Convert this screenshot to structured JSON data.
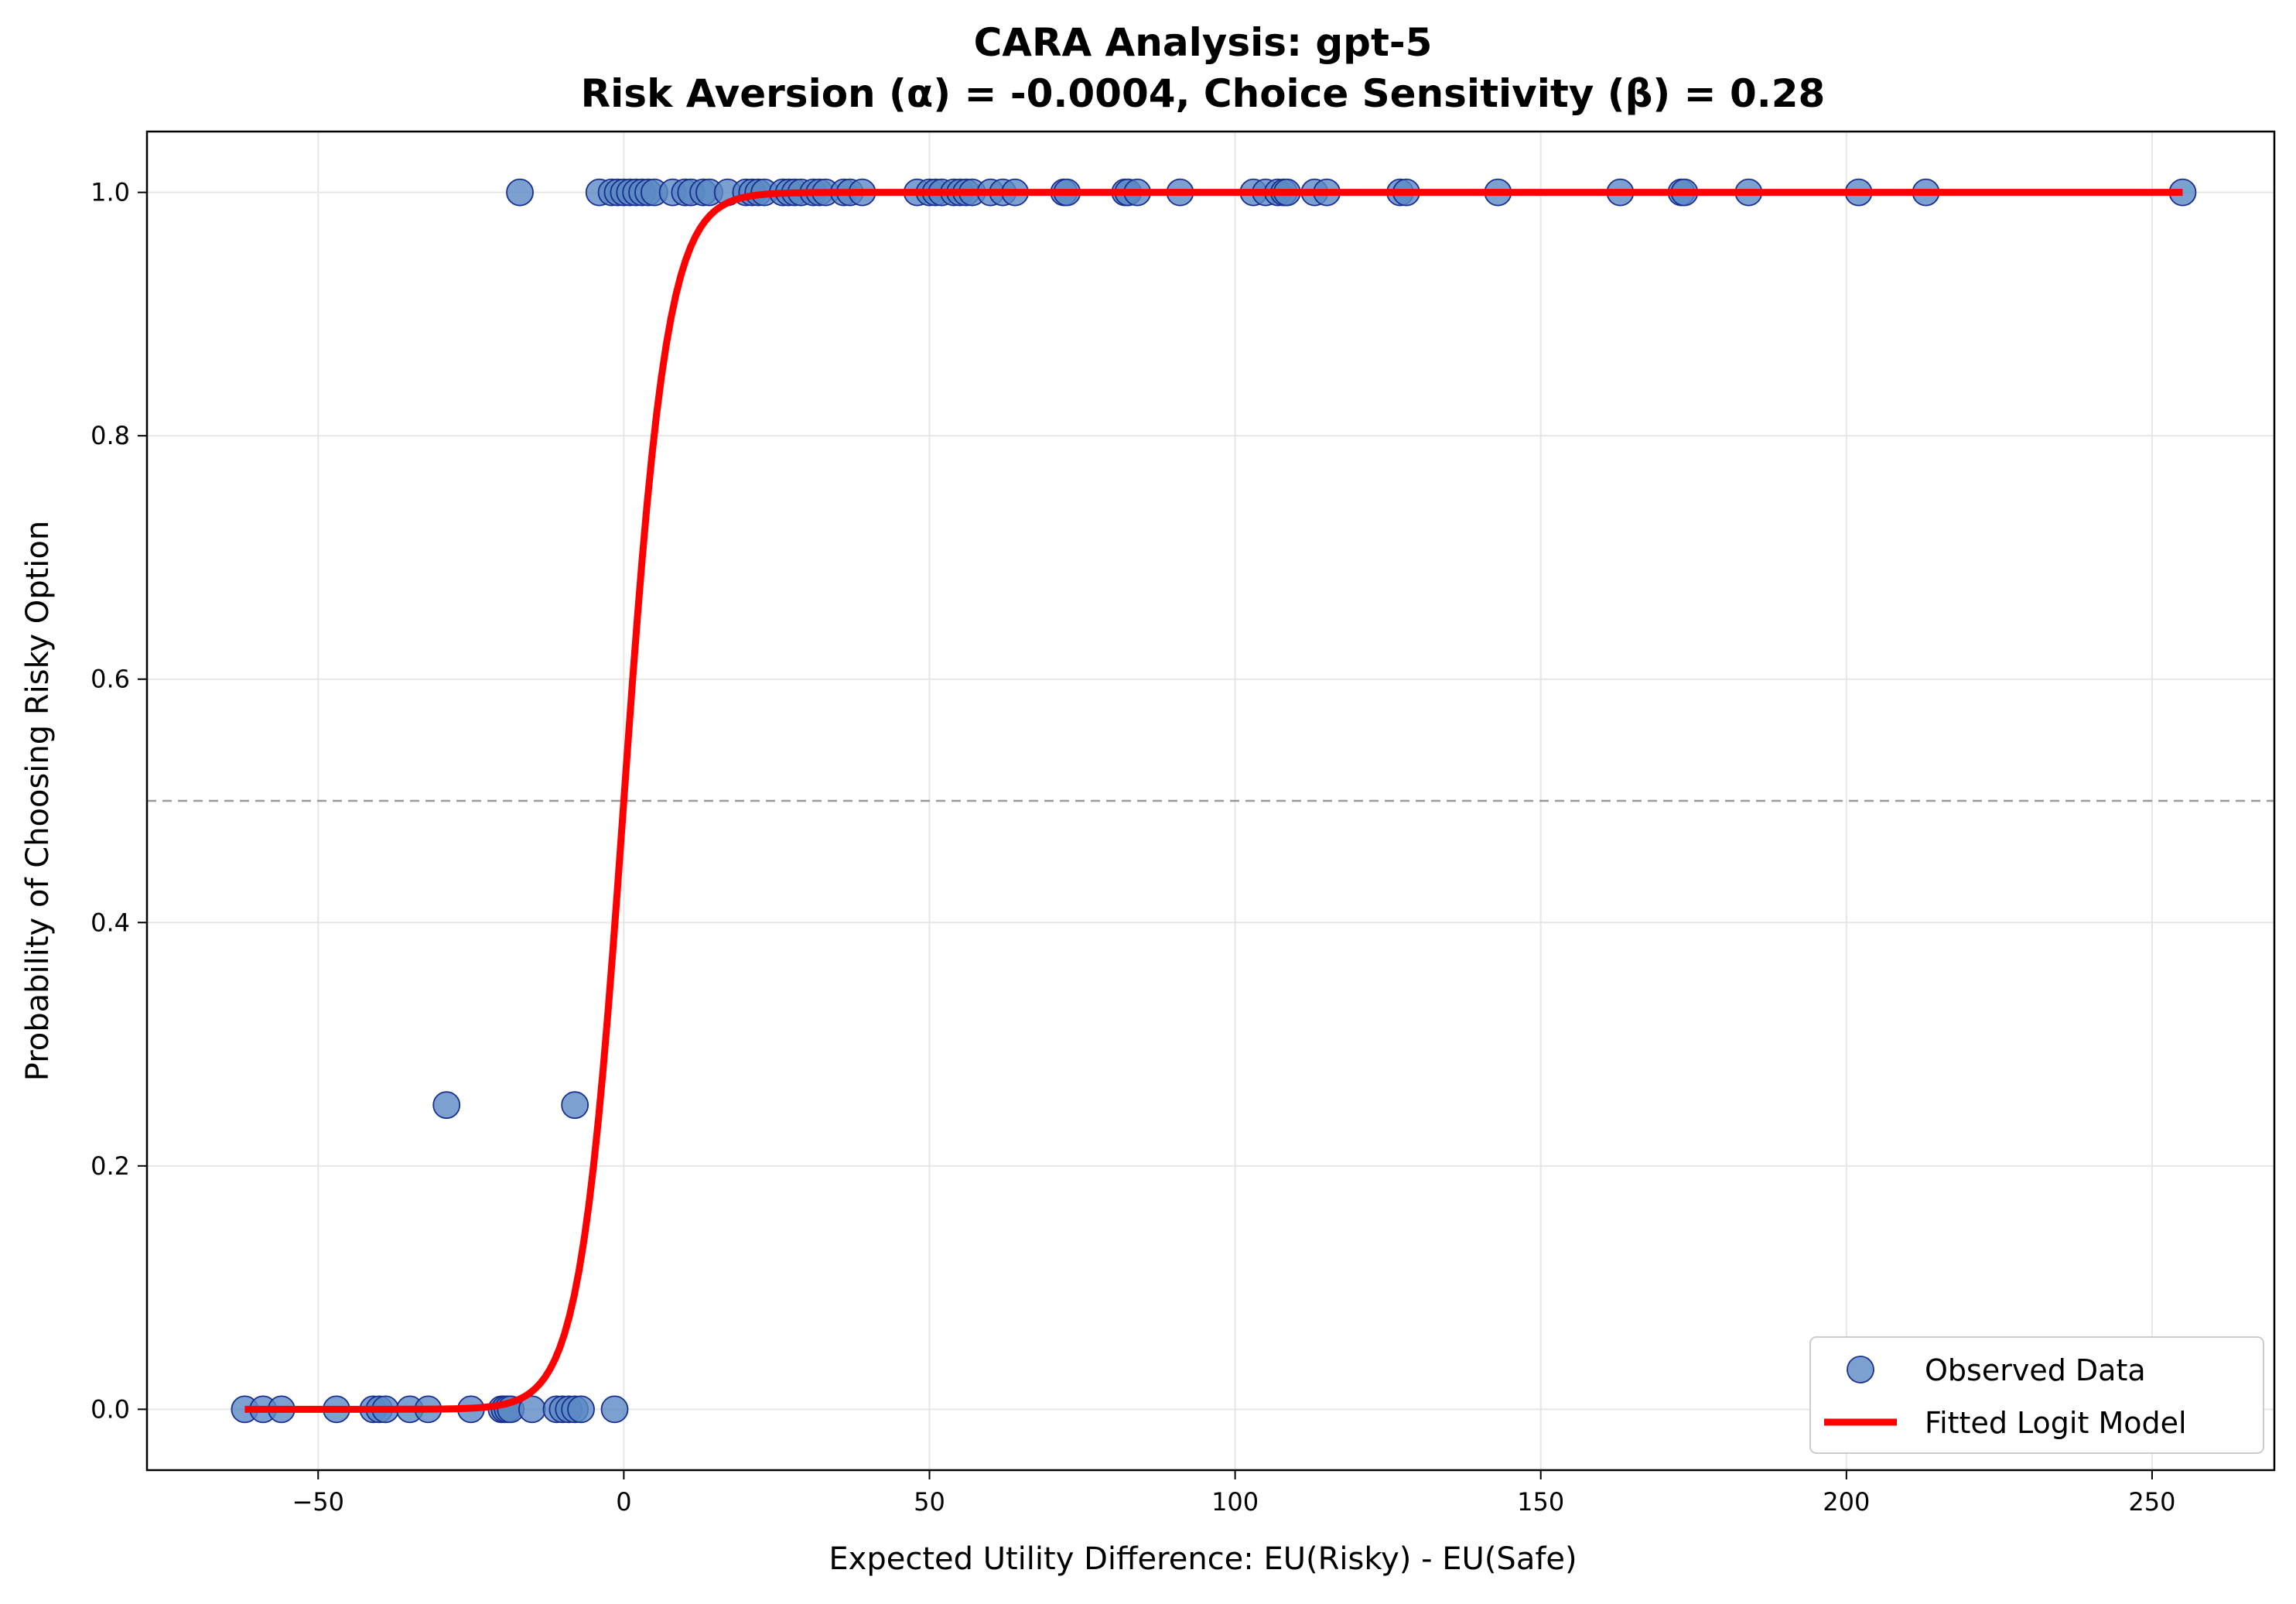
{
  "chart_data": {
    "type": "scatter",
    "title": "CARA Analysis: gpt-5",
    "subtitle": "Risk Aversion (α) = -0.0004, Choice Sensitivity (β) = 0.28",
    "xlabel": "Expected Utility Difference: EU(Risky) - EU(Safe)",
    "ylabel": "Probability of Choosing Risky Option",
    "xlim": [
      -78,
      270
    ],
    "ylim": [
      -0.05,
      1.05
    ],
    "xticks": [
      -50,
      0,
      50,
      100,
      150,
      200,
      250
    ],
    "xtick_labels": [
      "−50",
      "0",
      "50",
      "100",
      "150",
      "200",
      "250"
    ],
    "yticks": [
      0.0,
      0.2,
      0.4,
      0.6,
      0.8,
      1.0
    ],
    "ytick_labels": [
      "0.0",
      "0.2",
      "0.4",
      "0.6",
      "0.8",
      "1.0"
    ],
    "grid": true,
    "reference_line_y": 0.5,
    "legend_placement": "lower-right",
    "colors": {
      "points_fill": "#5b8ac4",
      "points_edge": "#1a2f8f",
      "curve": "#ff0000",
      "reference": "#999999",
      "grid": "#e6e6e6"
    },
    "series": [
      {
        "name": "Observed Data",
        "kind": "scatter",
        "points": [
          [
            -62,
            0
          ],
          [
            -59,
            0
          ],
          [
            -56,
            0
          ],
          [
            -47,
            0
          ],
          [
            -41,
            0
          ],
          [
            -40,
            0
          ],
          [
            -39,
            0
          ],
          [
            -35,
            0
          ],
          [
            -32,
            0
          ],
          [
            -25,
            0
          ],
          [
            -20,
            0
          ],
          [
            -19.5,
            0
          ],
          [
            -19,
            0
          ],
          [
            -18.5,
            0
          ],
          [
            -15,
            0
          ],
          [
            -11,
            0
          ],
          [
            -10,
            0
          ],
          [
            -9,
            0
          ],
          [
            -8,
            0
          ],
          [
            -7,
            0
          ],
          [
            -1.5,
            0
          ],
          [
            -29,
            0.25
          ],
          [
            -8,
            0.25
          ],
          [
            -17,
            1
          ],
          [
            -4,
            1
          ],
          [
            -2,
            1
          ],
          [
            -1,
            1
          ],
          [
            0,
            1
          ],
          [
            1,
            1
          ],
          [
            2,
            1
          ],
          [
            3,
            1
          ],
          [
            4,
            1
          ],
          [
            5,
            1
          ],
          [
            8,
            1
          ],
          [
            10,
            1
          ],
          [
            11,
            1
          ],
          [
            13,
            1
          ],
          [
            14,
            1
          ],
          [
            17,
            1
          ],
          [
            20,
            1
          ],
          [
            21,
            1
          ],
          [
            22,
            1
          ],
          [
            23,
            1
          ],
          [
            26,
            1
          ],
          [
            27,
            1
          ],
          [
            28,
            1
          ],
          [
            29,
            1
          ],
          [
            31,
            1
          ],
          [
            32,
            1
          ],
          [
            33,
            1
          ],
          [
            36,
            1
          ],
          [
            37,
            1
          ],
          [
            39,
            1
          ],
          [
            48,
            1
          ],
          [
            50,
            1
          ],
          [
            51,
            1
          ],
          [
            52,
            1
          ],
          [
            54,
            1
          ],
          [
            55,
            1
          ],
          [
            56,
            1
          ],
          [
            57,
            1
          ],
          [
            60,
            1
          ],
          [
            62,
            1
          ],
          [
            64,
            1
          ],
          [
            72,
            1
          ],
          [
            72.5,
            1
          ],
          [
            82,
            1
          ],
          [
            82.5,
            1
          ],
          [
            84,
            1
          ],
          [
            91,
            1
          ],
          [
            103,
            1
          ],
          [
            105,
            1
          ],
          [
            107,
            1
          ],
          [
            108,
            1
          ],
          [
            108.5,
            1
          ],
          [
            113,
            1
          ],
          [
            115,
            1
          ],
          [
            127,
            1
          ],
          [
            128,
            1
          ],
          [
            143,
            1
          ],
          [
            163,
            1
          ],
          [
            173,
            1
          ],
          [
            173.5,
            1
          ],
          [
            184,
            1
          ],
          [
            202,
            1
          ],
          [
            213,
            1
          ],
          [
            255,
            1
          ]
        ]
      },
      {
        "name": "Fitted Logit Model",
        "kind": "line",
        "function": "logistic",
        "beta": 0.28,
        "x_range": [
          -62,
          255
        ]
      }
    ]
  }
}
